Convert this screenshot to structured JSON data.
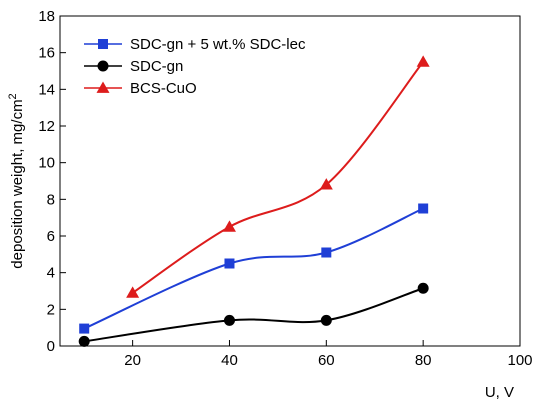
{
  "chart_data": {
    "type": "line",
    "title": "",
    "xlabel": "U, V",
    "ylabel": "deposition weight, mg/cm",
    "ylabel_superscript": "2",
    "xlim": [
      5,
      100
    ],
    "ylim": [
      0,
      18
    ],
    "xticks": [
      20,
      40,
      60,
      80,
      100
    ],
    "yticks": [
      0,
      2,
      4,
      6,
      8,
      10,
      12,
      14,
      16,
      18
    ],
    "grid": false,
    "legend_position": "top-left",
    "series": [
      {
        "name": "SDC-gn + 5 wt.% SDC-lec",
        "color": "#1f3fd6",
        "marker": "square",
        "x": [
          10,
          40,
          60,
          80
        ],
        "y": [
          0.95,
          4.5,
          5.1,
          7.5
        ]
      },
      {
        "name": "SDC-gn",
        "color": "#000000",
        "marker": "circle",
        "x": [
          10,
          40,
          60,
          80
        ],
        "y": [
          0.25,
          1.4,
          1.4,
          3.15
        ]
      },
      {
        "name": "BCS-CuO",
        "color": "#dd1c1c",
        "marker": "triangle",
        "x": [
          20,
          40,
          60,
          80
        ],
        "y": [
          2.9,
          6.5,
          8.8,
          15.5
        ]
      }
    ]
  }
}
